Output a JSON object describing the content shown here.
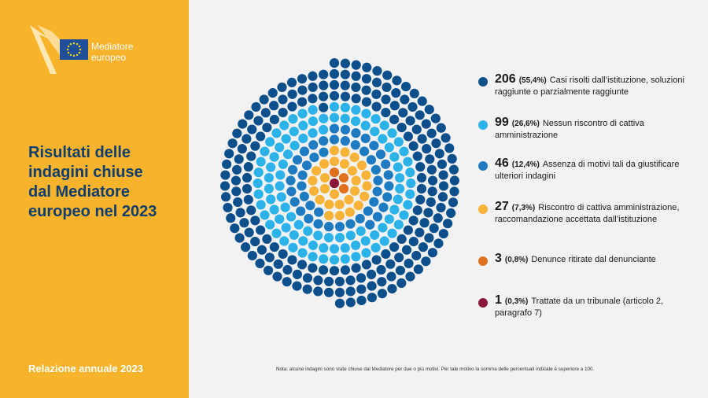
{
  "brand": {
    "name_line1": "Mediatore",
    "name_line2": "europeo"
  },
  "title": {
    "line1": "Risultati delle",
    "line2": "indagini chiuse",
    "line3": "dal Mediatore",
    "line4": "europeo nel 2023"
  },
  "report_label": "Relazione annuale 2023",
  "note": "Nota: alcune indagini sono state chiuse dal Mediatore per due o più motivi. Per tale motivo la somma delle percentuali indicate è superiore a 100.",
  "colors": {
    "sidebar": "#f7b32b",
    "title": "#0e3d6e",
    "eu_blue": "#1f4e9a",
    "eu_star": "#ffdd00"
  },
  "chart_data": {
    "type": "dot-matrix",
    "unit": "indagini",
    "series": [
      {
        "count": 206,
        "count_label": "206",
        "percent_label": "(55,4%)",
        "label": "Casi risolti dall’istituzione, soluzioni raggiunte o parzialmente raggiunte",
        "color": "#0d4f8b"
      },
      {
        "count": 99,
        "count_label": "99",
        "percent_label": "(26,6%)",
        "label": "Nessun riscontro di cattiva amministrazione",
        "color": "#2bb3e9"
      },
      {
        "count": 46,
        "count_label": "46",
        "percent_label": "(12,4%)",
        "label": "Assenza di motivi tali da giustificare ulteriori indagini",
        "color": "#1f7bc1"
      },
      {
        "count": 27,
        "count_label": "27",
        "percent_label": "(7,3%)",
        "label": "Riscontro di cattiva amministrazione, raccomandazione accettata dall’istituzione",
        "color": "#f7b338"
      },
      {
        "count": 3,
        "count_label": "3",
        "percent_label": "(0,8%)",
        "label": "Denunce ritirate dal denunciante",
        "color": "#e0701e"
      },
      {
        "count": 1,
        "count_label": "1",
        "percent_label": "(0,3%)",
        "label": "Trattate da un tribunale (articolo 2, paragrafo 7)",
        "color": "#8b1538"
      }
    ]
  }
}
